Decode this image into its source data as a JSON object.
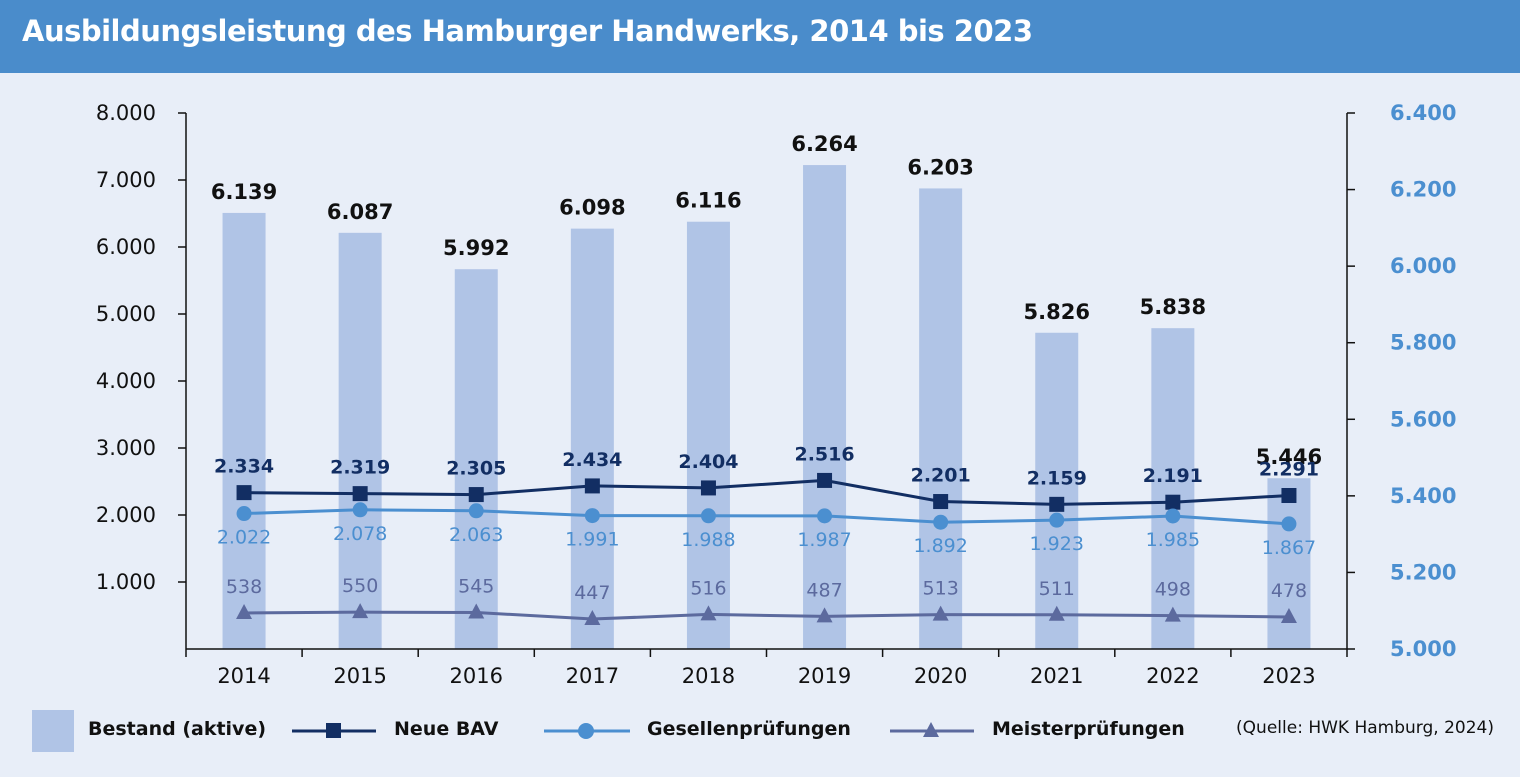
{
  "title": "Ausbildungsleistung des Hamburger Handwerks, 2014 bis 2023",
  "source": "(Quelle: HWK Hamburg, 2024)",
  "colors": {
    "header": "#4a8ccb",
    "background": "#e8eef8",
    "bar": "#b0c4e6",
    "neue_bav": "#122e63",
    "gesellen": "#4b8fd0",
    "meister": "#5c6a9e",
    "right_axis": "#4b8fd0"
  },
  "legend": {
    "bestand": "Bestand (aktive)",
    "neue_bav": "Neue BAV",
    "gesellen": "Gesellenprüfungen",
    "meister": "Meisterprüfungen"
  },
  "chart_data": {
    "type": "bar+line",
    "categories": [
      "2014",
      "2015",
      "2016",
      "2017",
      "2018",
      "2019",
      "2020",
      "2021",
      "2022",
      "2023"
    ],
    "left_axis": {
      "range": [
        0,
        8000
      ],
      "ticks": [
        1000,
        2000,
        3000,
        4000,
        5000,
        6000,
        7000,
        8000
      ],
      "tick_labels": [
        "1.000",
        "2.000",
        "3.000",
        "4.000",
        "5.000",
        "6.000",
        "7.000",
        "8.000"
      ]
    },
    "right_axis": {
      "range": [
        5000,
        6400
      ],
      "ticks": [
        5000,
        5200,
        5400,
        5600,
        5800,
        6000,
        6200,
        6400
      ],
      "tick_labels": [
        "5.000",
        "5.200",
        "5.400",
        "5.600",
        "5.800",
        "6.000",
        "6.200",
        "6.400"
      ]
    },
    "series": [
      {
        "name": "Bestand (aktive)",
        "kind": "bar",
        "axis": "right",
        "values": [
          6139,
          6087,
          5992,
          6098,
          6116,
          6264,
          6203,
          5826,
          5838,
          5446
        ],
        "labels": [
          "6.139",
          "6.087",
          "5.992",
          "6.098",
          "6.116",
          "6.264",
          "6.203",
          "5.826",
          "5.838",
          "5.446"
        ]
      },
      {
        "name": "Neue BAV",
        "kind": "line",
        "marker": "square",
        "axis": "left",
        "values": [
          2334,
          2319,
          2305,
          2434,
          2404,
          2516,
          2201,
          2159,
          2191,
          2291
        ],
        "labels": [
          "2.334",
          "2.319",
          "2.305",
          "2.434",
          "2.404",
          "2.516",
          "2.201",
          "2.159",
          "2.191",
          "2.291"
        ]
      },
      {
        "name": "Gesellenprüfungen",
        "kind": "line",
        "marker": "circle",
        "axis": "left",
        "values": [
          2022,
          2078,
          2063,
          1991,
          1988,
          1987,
          1892,
          1923,
          1985,
          1867
        ],
        "labels": [
          "2.022",
          "2.078",
          "2.063",
          "1.991",
          "1.988",
          "1.987",
          "1.892",
          "1.923",
          "1.985",
          "1.867"
        ]
      },
      {
        "name": "Meisterprüfungen",
        "kind": "line",
        "marker": "triangle",
        "axis": "left",
        "values": [
          538,
          550,
          545,
          447,
          516,
          487,
          513,
          511,
          498,
          478
        ],
        "labels": [
          "538",
          "550",
          "545",
          "447",
          "516",
          "487",
          "513",
          "511",
          "498",
          "478"
        ]
      }
    ]
  }
}
